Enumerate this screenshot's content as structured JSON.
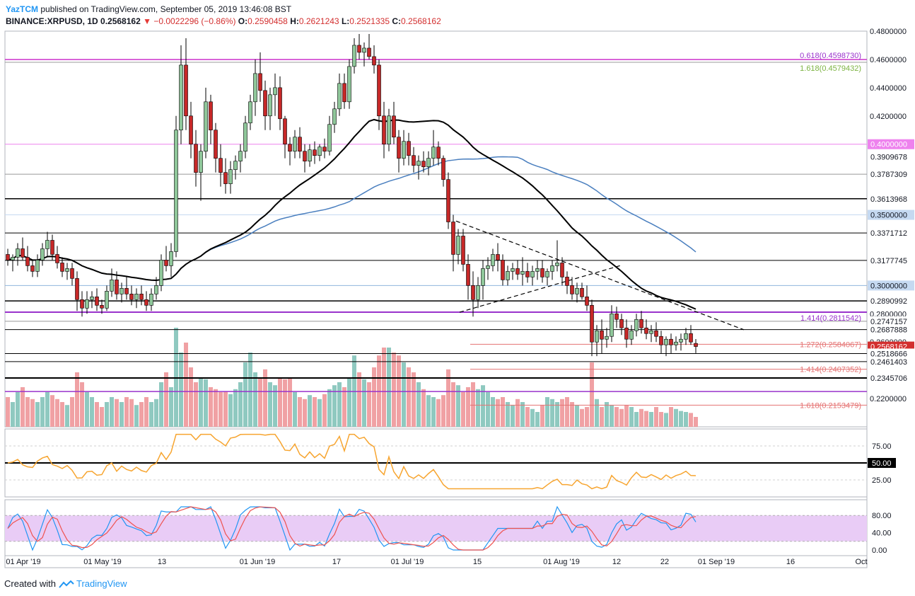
{
  "header": {
    "author": "YazTCM",
    "published_text": "published on TradingView.com, September 05, 2019 13:46:08 BST",
    "symbol": "BINANCE:XRPUSD, 1D",
    "last": "0.2568162",
    "change": "−0.0022296 (−0.86%)",
    "o_label": "O:",
    "o": "0.2590458",
    "h_label": "H:",
    "h": "0.2621243",
    "l_label": "L:",
    "l": "0.2521335",
    "c_label": "C:",
    "c": "0.2568162"
  },
  "footer": {
    "created_with": "Created with",
    "brand": "TradingView"
  },
  "colors": {
    "up": "#8fc79a",
    "down": "#c62828",
    "vol_up": "#8fc9c0",
    "vol_down": "#f0a1a4",
    "ma200": "#4a7fbf",
    "ma100": "#000000",
    "rsi": "#f7a530",
    "stoch_k": "#2196f3",
    "stoch_d": "#ef5350",
    "stoch_bg": "#e9ccf6"
  },
  "chart_data": {
    "type": "candlestick",
    "symbol": "XRPUSD",
    "interval": "1D",
    "y_range": [
      0.2,
      0.48
    ],
    "x_labels": [
      "01 Apr '19",
      "01 May '19",
      "13",
      "01 Jun '19",
      "17",
      "01 Jul '19",
      "15",
      "01 Aug '19",
      "12",
      "22",
      "01 Sep '19",
      "16",
      "Oct"
    ],
    "price_ticks": [
      "0.4800000",
      "0.4600000",
      "0.4400000",
      "0.4200000",
      "0.2800000",
      "0.2600000",
      "0.2200000"
    ],
    "hidden_ticks": [
      "0.3400000",
      "0.3200000",
      "0.2400000"
    ],
    "level_labels": [
      {
        "text": "0.4000000",
        "price": 0.4,
        "bg": "#ee82ee",
        "fg": "#ffffff"
      },
      {
        "text": "0.3909678",
        "price": 0.3909678,
        "bg": "#ffffff",
        "fg": "#131722"
      },
      {
        "text": "0.3787309",
        "price": 0.3787309,
        "bg": "#ffffff",
        "fg": "#131722"
      },
      {
        "text": "0.3613968",
        "price": 0.3613968,
        "bg": "#ffffff",
        "fg": "#131722"
      },
      {
        "text": "0.3500000",
        "price": 0.35,
        "bg": "#c5d9f1",
        "fg": "#131722"
      },
      {
        "text": "0.3371712",
        "price": 0.3371712,
        "bg": "#ffffff",
        "fg": "#131722"
      },
      {
        "text": "0.3177745",
        "price": 0.3177745,
        "bg": "#ffffff",
        "fg": "#131722"
      },
      {
        "text": "0.3000000",
        "price": 0.3,
        "bg": "#c5d9f1",
        "fg": "#131722"
      },
      {
        "text": "0.2890992",
        "price": 0.2890992,
        "bg": "#ffffff",
        "fg": "#131722"
      },
      {
        "text": "0.2747157",
        "price": 0.2747157,
        "bg": "#ffffff",
        "fg": "#131722"
      },
      {
        "text": "0.2687888",
        "price": 0.2687888,
        "bg": "#ffffff",
        "fg": "#131722"
      },
      {
        "text": "0.2568162",
        "price": 0.2568162,
        "bg": "#d32f2f",
        "fg": "#ffffff"
      },
      {
        "text": "0.2518666",
        "price": 0.2518666,
        "bg": "#ffffff",
        "fg": "#131722"
      },
      {
        "text": "0.2461403",
        "price": 0.2461403,
        "bg": "#ffffff",
        "fg": "#131722"
      },
      {
        "text": "0.2345706",
        "price": 0.2345706,
        "bg": "#ffffff",
        "fg": "#131722"
      }
    ],
    "horizontal_levels": [
      {
        "price": 0.459873,
        "color": "#cc33cc",
        "width": 1.5
      },
      {
        "price": 0.4579432,
        "color": "#999999",
        "width": 1
      },
      {
        "price": 0.4,
        "color": "#ee82ee",
        "width": 1
      },
      {
        "price": 0.3787309,
        "color": "#999999",
        "width": 1
      },
      {
        "price": 0.3613968,
        "color": "#000000",
        "width": 1.5
      },
      {
        "price": 0.35,
        "color": "#c5d9f1",
        "width": 1
      },
      {
        "price": 0.3371712,
        "color": "#000000",
        "width": 1
      },
      {
        "price": 0.3177745,
        "color": "#000000",
        "width": 1
      },
      {
        "price": 0.3,
        "color": "#8fb4dd",
        "width": 1
      },
      {
        "price": 0.2890992,
        "color": "#000000",
        "width": 1.5
      },
      {
        "price": 0.2811542,
        "color": "#9933cc",
        "width": 2
      },
      {
        "price": 0.2747157,
        "color": "#999999",
        "width": 1
      },
      {
        "price": 0.2687888,
        "color": "#000000",
        "width": 1
      },
      {
        "price": 0.2518666,
        "color": "#000000",
        "width": 1
      },
      {
        "price": 0.2461403,
        "color": "#000000",
        "width": 1
      },
      {
        "price": 0.2345706,
        "color": "#000000",
        "width": 2
      },
      {
        "price": 0.225,
        "color": "#9933cc",
        "width": 1.5
      }
    ],
    "fib_extension": {
      "color": "#e57373",
      "levels": [
        {
          "label": "1.272(0.2584067)",
          "price": 0.2584067
        },
        {
          "label": "1.414(0.2407352)",
          "price": 0.2407352
        },
        {
          "label": "1.618(0.2153479)",
          "price": 0.2153479
        }
      ]
    },
    "fib_labels": [
      {
        "label": "0.618(0.4598730)",
        "price": 0.459873,
        "color": "#9933cc"
      },
      {
        "label": "1.618(0.4579432)",
        "price": 0.4579432,
        "color": "#7cb342"
      },
      {
        "label": "1.414(0.2811542)",
        "price": 0.2811542,
        "color": "#9933cc"
      }
    ],
    "candles": [
      [
        0.322,
        0.326,
        0.314,
        0.318
      ],
      [
        0.318,
        0.322,
        0.31,
        0.32
      ],
      [
        0.32,
        0.33,
        0.314,
        0.326
      ],
      [
        0.326,
        0.334,
        0.318,
        0.32
      ],
      [
        0.32,
        0.328,
        0.31,
        0.314
      ],
      [
        0.314,
        0.318,
        0.306,
        0.31
      ],
      [
        0.31,
        0.322,
        0.306,
        0.318
      ],
      [
        0.318,
        0.33,
        0.314,
        0.326
      ],
      [
        0.326,
        0.338,
        0.32,
        0.332
      ],
      [
        0.332,
        0.336,
        0.318,
        0.322
      ],
      [
        0.322,
        0.328,
        0.312,
        0.316
      ],
      [
        0.316,
        0.32,
        0.306,
        0.31
      ],
      [
        0.31,
        0.316,
        0.304,
        0.312
      ],
      [
        0.312,
        0.316,
        0.3,
        0.305
      ],
      [
        0.305,
        0.31,
        0.282,
        0.29
      ],
      [
        0.29,
        0.296,
        0.278,
        0.284
      ],
      [
        0.284,
        0.296,
        0.28,
        0.29
      ],
      [
        0.29,
        0.296,
        0.284,
        0.292
      ],
      [
        0.292,
        0.298,
        0.282,
        0.286
      ],
      [
        0.286,
        0.29,
        0.28,
        0.284
      ],
      [
        0.284,
        0.3,
        0.282,
        0.296
      ],
      [
        0.296,
        0.312,
        0.292,
        0.304
      ],
      [
        0.304,
        0.31,
        0.29,
        0.294
      ],
      [
        0.294,
        0.302,
        0.288,
        0.298
      ],
      [
        0.298,
        0.306,
        0.29,
        0.294
      ],
      [
        0.294,
        0.3,
        0.286,
        0.29
      ],
      [
        0.29,
        0.298,
        0.284,
        0.294
      ],
      [
        0.294,
        0.3,
        0.286,
        0.29
      ],
      [
        0.29,
        0.296,
        0.282,
        0.286
      ],
      [
        0.286,
        0.298,
        0.282,
        0.294
      ],
      [
        0.294,
        0.306,
        0.29,
        0.3
      ],
      [
        0.3,
        0.322,
        0.296,
        0.318
      ],
      [
        0.318,
        0.328,
        0.31,
        0.314
      ],
      [
        0.314,
        0.33,
        0.306,
        0.324
      ],
      [
        0.324,
        0.42,
        0.32,
        0.41
      ],
      [
        0.41,
        0.47,
        0.4,
        0.456
      ],
      [
        0.456,
        0.475,
        0.41,
        0.42
      ],
      [
        0.42,
        0.43,
        0.39,
        0.4
      ],
      [
        0.4,
        0.41,
        0.37,
        0.38
      ],
      [
        0.38,
        0.4,
        0.36,
        0.395
      ],
      [
        0.395,
        0.44,
        0.39,
        0.43
      ],
      [
        0.43,
        0.435,
        0.4,
        0.41
      ],
      [
        0.41,
        0.415,
        0.38,
        0.39
      ],
      [
        0.39,
        0.4,
        0.37,
        0.38
      ],
      [
        0.38,
        0.39,
        0.365,
        0.372
      ],
      [
        0.372,
        0.388,
        0.365,
        0.382
      ],
      [
        0.382,
        0.392,
        0.375,
        0.388
      ],
      [
        0.388,
        0.4,
        0.38,
        0.395
      ],
      [
        0.395,
        0.42,
        0.39,
        0.415
      ],
      [
        0.415,
        0.435,
        0.41,
        0.43
      ],
      [
        0.43,
        0.46,
        0.42,
        0.45
      ],
      [
        0.45,
        0.465,
        0.43,
        0.438
      ],
      [
        0.438,
        0.445,
        0.41,
        0.42
      ],
      [
        0.42,
        0.44,
        0.41,
        0.435
      ],
      [
        0.435,
        0.45,
        0.42,
        0.44
      ],
      [
        0.44,
        0.448,
        0.41,
        0.418
      ],
      [
        0.418,
        0.42,
        0.39,
        0.4
      ],
      [
        0.4,
        0.405,
        0.385,
        0.395
      ],
      [
        0.395,
        0.41,
        0.39,
        0.405
      ],
      [
        0.405,
        0.412,
        0.39,
        0.395
      ],
      [
        0.395,
        0.4,
        0.38,
        0.388
      ],
      [
        0.388,
        0.4,
        0.384,
        0.396
      ],
      [
        0.396,
        0.402,
        0.386,
        0.392
      ],
      [
        0.392,
        0.4,
        0.388,
        0.398
      ],
      [
        0.398,
        0.404,
        0.39,
        0.395
      ],
      [
        0.395,
        0.42,
        0.392,
        0.414
      ],
      [
        0.414,
        0.43,
        0.408,
        0.425
      ],
      [
        0.425,
        0.45,
        0.42,
        0.443
      ],
      [
        0.443,
        0.45,
        0.425,
        0.43
      ],
      [
        0.43,
        0.46,
        0.425,
        0.455
      ],
      [
        0.455,
        0.475,
        0.45,
        0.47
      ],
      [
        0.47,
        0.478,
        0.46,
        0.465
      ],
      [
        0.465,
        0.472,
        0.455,
        0.468
      ],
      [
        0.468,
        0.478,
        0.46,
        0.462
      ],
      [
        0.462,
        0.47,
        0.45,
        0.456
      ],
      [
        0.456,
        0.46,
        0.41,
        0.42
      ],
      [
        0.42,
        0.43,
        0.39,
        0.4
      ],
      [
        0.4,
        0.425,
        0.395,
        0.42
      ],
      [
        0.42,
        0.43,
        0.4,
        0.405
      ],
      [
        0.405,
        0.41,
        0.38,
        0.39
      ],
      [
        0.39,
        0.41,
        0.385,
        0.402
      ],
      [
        0.402,
        0.408,
        0.385,
        0.392
      ],
      [
        0.392,
        0.398,
        0.38,
        0.385
      ],
      [
        0.385,
        0.392,
        0.375,
        0.388
      ],
      [
        0.388,
        0.395,
        0.38,
        0.384
      ],
      [
        0.384,
        0.395,
        0.378,
        0.39
      ],
      [
        0.39,
        0.41,
        0.385,
        0.398
      ],
      [
        0.398,
        0.402,
        0.385,
        0.39
      ],
      [
        0.39,
        0.392,
        0.37,
        0.375
      ],
      [
        0.375,
        0.38,
        0.34,
        0.345
      ],
      [
        0.345,
        0.35,
        0.31,
        0.322
      ],
      [
        0.322,
        0.34,
        0.315,
        0.335
      ],
      [
        0.335,
        0.34,
        0.31,
        0.315
      ],
      [
        0.315,
        0.322,
        0.29,
        0.3
      ],
      [
        0.3,
        0.31,
        0.278,
        0.29
      ],
      [
        0.29,
        0.306,
        0.284,
        0.3
      ],
      [
        0.3,
        0.318,
        0.29,
        0.312
      ],
      [
        0.312,
        0.32,
        0.304,
        0.314
      ],
      [
        0.314,
        0.326,
        0.31,
        0.322
      ],
      [
        0.322,
        0.33,
        0.31,
        0.318
      ],
      [
        0.318,
        0.322,
        0.3,
        0.304
      ],
      [
        0.304,
        0.314,
        0.3,
        0.31
      ],
      [
        0.31,
        0.316,
        0.304,
        0.312
      ],
      [
        0.312,
        0.318,
        0.304,
        0.308
      ],
      [
        0.308,
        0.32,
        0.3,
        0.31
      ],
      [
        0.31,
        0.316,
        0.302,
        0.306
      ],
      [
        0.306,
        0.314,
        0.3,
        0.31
      ],
      [
        0.31,
        0.318,
        0.304,
        0.312
      ],
      [
        0.312,
        0.318,
        0.302,
        0.306
      ],
      [
        0.306,
        0.312,
        0.3,
        0.31
      ],
      [
        0.31,
        0.318,
        0.304,
        0.314
      ],
      [
        0.314,
        0.332,
        0.31,
        0.316
      ],
      [
        0.316,
        0.32,
        0.3,
        0.306
      ],
      [
        0.306,
        0.31,
        0.294,
        0.3
      ],
      [
        0.3,
        0.306,
        0.29,
        0.294
      ],
      [
        0.294,
        0.302,
        0.288,
        0.298
      ],
      [
        0.298,
        0.302,
        0.29,
        0.292
      ],
      [
        0.292,
        0.3,
        0.282,
        0.286
      ],
      [
        0.286,
        0.29,
        0.25,
        0.26
      ],
      [
        0.26,
        0.272,
        0.25,
        0.268
      ],
      [
        0.268,
        0.276,
        0.252,
        0.262
      ],
      [
        0.262,
        0.27,
        0.256,
        0.264
      ],
      [
        0.264,
        0.286,
        0.26,
        0.28
      ],
      [
        0.28,
        0.285,
        0.27,
        0.276
      ],
      [
        0.276,
        0.28,
        0.265,
        0.27
      ],
      [
        0.27,
        0.276,
        0.256,
        0.262
      ],
      [
        0.262,
        0.272,
        0.258,
        0.268
      ],
      [
        0.268,
        0.28,
        0.264,
        0.276
      ],
      [
        0.276,
        0.282,
        0.266,
        0.27
      ],
      [
        0.27,
        0.276,
        0.262,
        0.266
      ],
      [
        0.266,
        0.272,
        0.26,
        0.268
      ],
      [
        0.268,
        0.274,
        0.26,
        0.264
      ],
      [
        0.264,
        0.268,
        0.252,
        0.258
      ],
      [
        0.258,
        0.264,
        0.25,
        0.262
      ],
      [
        0.262,
        0.266,
        0.252,
        0.258
      ],
      [
        0.258,
        0.264,
        0.254,
        0.26
      ],
      [
        0.26,
        0.266,
        0.254,
        0.262
      ],
      [
        0.262,
        0.27,
        0.258,
        0.266
      ],
      [
        0.266,
        0.272,
        0.258,
        0.26
      ],
      [
        0.2590458,
        0.2621243,
        0.2521335,
        0.2568162
      ]
    ],
    "volume": [
      0.3,
      0.25,
      0.35,
      0.4,
      0.3,
      0.28,
      0.25,
      0.3,
      0.35,
      0.32,
      0.28,
      0.25,
      0.22,
      0.3,
      0.55,
      0.45,
      0.35,
      0.3,
      0.25,
      0.2,
      0.25,
      0.3,
      0.28,
      0.25,
      0.3,
      0.28,
      0.22,
      0.25,
      0.3,
      0.25,
      0.28,
      0.45,
      0.55,
      0.4,
      1.0,
      0.75,
      0.85,
      0.6,
      0.45,
      0.5,
      0.48,
      0.4,
      0.38,
      0.35,
      0.36,
      0.33,
      0.38,
      0.45,
      0.65,
      0.75,
      0.55,
      0.5,
      0.58,
      0.45,
      0.42,
      0.5,
      0.48,
      0.5,
      0.35,
      0.3,
      0.28,
      0.32,
      0.3,
      0.28,
      0.33,
      0.38,
      0.42,
      0.45,
      0.4,
      0.5,
      0.72,
      0.55,
      0.48,
      0.45,
      0.6,
      0.72,
      0.8,
      0.8,
      0.75,
      0.72,
      0.65,
      0.6,
      0.55,
      0.45,
      0.38,
      0.32,
      0.3,
      0.28,
      0.32,
      0.58,
      0.45,
      0.42,
      0.35,
      0.4,
      0.45,
      0.38,
      0.42,
      0.35,
      0.3,
      0.28,
      0.3,
      0.25,
      0.22,
      0.28,
      0.25,
      0.2,
      0.18,
      0.15,
      0.22,
      0.3,
      0.28,
      0.25,
      0.28,
      0.3,
      0.25,
      0.22,
      0.18,
      0.2,
      0.65,
      0.28,
      0.2,
      0.25,
      0.22,
      0.2,
      0.18,
      0.22,
      0.2,
      0.15,
      0.18,
      0.16,
      0.15,
      0.2,
      0.15,
      0.14,
      0.2,
      0.18,
      0.16,
      0.15,
      0.14,
      0.1
    ],
    "rsi": {
      "level_labels": [
        "75.00",
        "50.00",
        "25.00"
      ],
      "mid": 50
    },
    "stoch_rsi": {
      "level_labels": [
        "80.00",
        "40.00",
        "0.00"
      ],
      "band": [
        20,
        80
      ]
    }
  }
}
